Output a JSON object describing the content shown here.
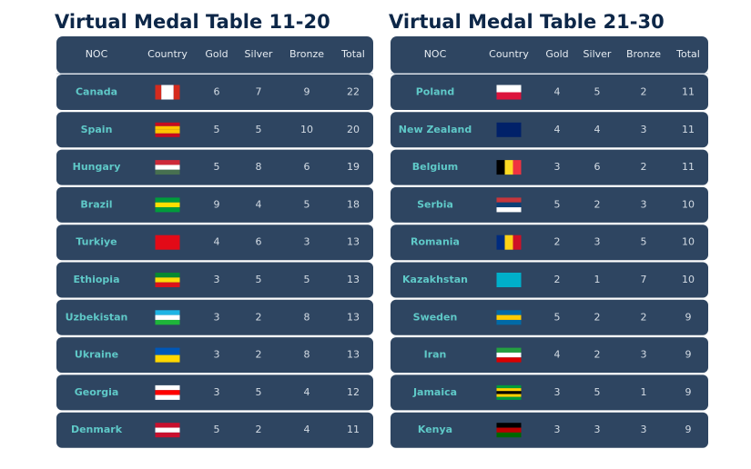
{
  "tables": [
    {
      "title": "Virtual Medal Table 11-20",
      "columns": [
        "NOC",
        "Country",
        "Gold",
        "Silver",
        "Bronze",
        "Total"
      ],
      "rows": [
        {
          "noc": "Canada",
          "gold": 6,
          "silver": 7,
          "bronze": 9,
          "total": 22
        },
        {
          "noc": "Spain",
          "gold": 5,
          "silver": 5,
          "bronze": 10,
          "total": 20
        },
        {
          "noc": "Hungary",
          "gold": 5,
          "silver": 8,
          "bronze": 6,
          "total": 19
        },
        {
          "noc": "Brazil",
          "gold": 9,
          "silver": 4,
          "bronze": 5,
          "total": 18
        },
        {
          "noc": "Turkiye",
          "gold": 4,
          "silver": 6,
          "bronze": 3,
          "total": 13
        },
        {
          "noc": "Ethiopia",
          "gold": 3,
          "silver": 5,
          "bronze": 5,
          "total": 13
        },
        {
          "noc": "Uzbekistan",
          "gold": 3,
          "silver": 2,
          "bronze": 8,
          "total": 13
        },
        {
          "noc": "Ukraine",
          "gold": 3,
          "silver": 2,
          "bronze": 8,
          "total": 13
        },
        {
          "noc": "Georgia",
          "gold": 3,
          "silver": 5,
          "bronze": 4,
          "total": 12
        },
        {
          "noc": "Denmark",
          "gold": 5,
          "silver": 2,
          "bronze": 4,
          "total": 11
        }
      ]
    },
    {
      "title": "Virtual Medal Table 21-30",
      "columns": [
        "NOC",
        "Country",
        "Gold",
        "Silver",
        "Bronze",
        "Total"
      ],
      "rows": [
        {
          "noc": "Poland",
          "gold": 4,
          "silver": 5,
          "bronze": 2,
          "total": 11
        },
        {
          "noc": "New Zealand",
          "gold": 4,
          "silver": 4,
          "bronze": 3,
          "total": 11
        },
        {
          "noc": "Belgium",
          "gold": 3,
          "silver": 6,
          "bronze": 2,
          "total": 11
        },
        {
          "noc": "Serbia",
          "gold": 5,
          "silver": 2,
          "bronze": 3,
          "total": 10
        },
        {
          "noc": "Romania",
          "gold": 2,
          "silver": 3,
          "bronze": 5,
          "total": 10
        },
        {
          "noc": "Kazakhstan",
          "gold": 2,
          "silver": 1,
          "bronze": 7,
          "total": 10
        },
        {
          "noc": "Sweden",
          "gold": 5,
          "silver": 2,
          "bronze": 2,
          "total": 9
        },
        {
          "noc": "Iran",
          "gold": 4,
          "silver": 2,
          "bronze": 3,
          "total": 9
        },
        {
          "noc": "Jamaica",
          "gold": 3,
          "silver": 5,
          "bronze": 1,
          "total": 9
        },
        {
          "noc": "Kenya",
          "gold": 3,
          "silver": 3,
          "bronze": 3,
          "total": 9
        }
      ]
    }
  ]
}
